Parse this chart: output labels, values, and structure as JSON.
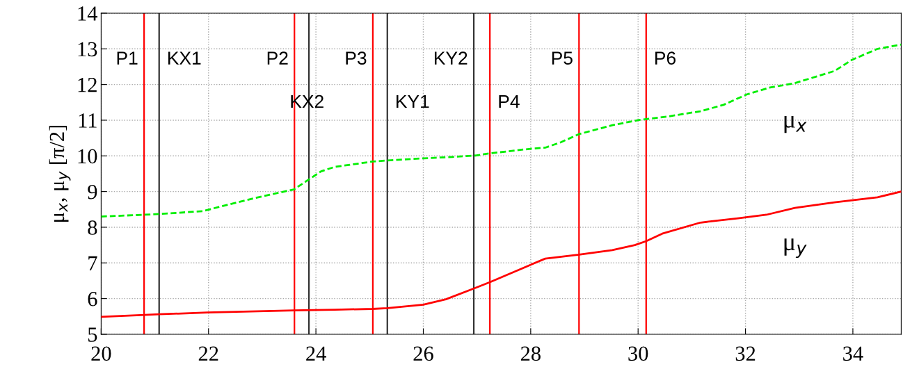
{
  "chart_data": {
    "type": "line",
    "ylabel": "μ$_{x}$, μ$_{y}$ [π/2]",
    "xlim": [
      20,
      34.9
    ],
    "xticks": [
      20,
      22,
      24,
      26,
      28,
      30,
      32,
      34
    ],
    "ylim": [
      5,
      14
    ],
    "yticks": [
      5,
      6,
      7,
      8,
      9,
      10,
      11,
      12,
      13,
      14
    ],
    "grid": true,
    "legend": false,
    "series": [
      {
        "name": "μ$_{x}$",
        "color": "#00ee00",
        "line_style": "dashed",
        "x": [
          20,
          20.81,
          21.08,
          21.89,
          22.38,
          22.87,
          23.59,
          23.86,
          24.1,
          24.35,
          25.05,
          25.33,
          26.0,
          26.54,
          26.97,
          27.24,
          28.0,
          28.27,
          28.56,
          28.9,
          29.52,
          30.0,
          30.58,
          31.16,
          31.59,
          32.02,
          32.44,
          32.92,
          33.66,
          33.98,
          34.46,
          34.9
        ],
        "values": [
          8.3,
          8.35,
          8.37,
          8.45,
          8.64,
          8.82,
          9.06,
          9.33,
          9.57,
          9.69,
          9.84,
          9.87,
          9.93,
          9.97,
          10.01,
          10.07,
          10.2,
          10.23,
          10.38,
          10.61,
          10.86,
          11.0,
          11.11,
          11.25,
          11.43,
          11.72,
          11.91,
          12.04,
          12.38,
          12.69,
          13.0,
          13.12
        ]
      },
      {
        "name": "μ$_{y}$",
        "color": "#ff0000",
        "line_style": "solid",
        "x": [
          20,
          20.81,
          21.08,
          21.98,
          23.59,
          24.35,
          25.05,
          25.33,
          26.0,
          26.42,
          26.97,
          27.24,
          28.27,
          28.9,
          29.52,
          29.94,
          30.15,
          30.45,
          31.16,
          31.86,
          32.39,
          32.92,
          33.66,
          34.46,
          34.9
        ],
        "values": [
          5.49,
          5.54,
          5.56,
          5.61,
          5.67,
          5.69,
          5.71,
          5.73,
          5.83,
          5.98,
          6.3,
          6.46,
          7.12,
          7.23,
          7.36,
          7.5,
          7.61,
          7.82,
          8.13,
          8.25,
          8.35,
          8.54,
          8.7,
          8.84,
          9.0
        ]
      }
    ],
    "ref_lines": [
      {
        "axis": "x",
        "value": 20.8,
        "label": "P1",
        "color": "#ff0000"
      },
      {
        "axis": "x",
        "value": 21.08,
        "label": "KX1",
        "color": "#333333"
      },
      {
        "axis": "x",
        "value": 23.6,
        "label": "P2",
        "color": "#ff0000"
      },
      {
        "axis": "x",
        "value": 23.87,
        "label": "KX2",
        "color": "#333333"
      },
      {
        "axis": "x",
        "value": 25.06,
        "label": "P3",
        "color": "#ff0000"
      },
      {
        "axis": "x",
        "value": 25.33,
        "label": "KY1",
        "color": "#333333"
      },
      {
        "axis": "x",
        "value": 26.94,
        "label": "KY2",
        "color": "#333333"
      },
      {
        "axis": "x",
        "value": 27.24,
        "label": "P4",
        "color": "#ff0000"
      },
      {
        "axis": "x",
        "value": 28.9,
        "label": "P5",
        "color": "#ff0000"
      },
      {
        "axis": "x",
        "value": 30.15,
        "label": "P6",
        "color": "#ff0000"
      }
    ]
  }
}
